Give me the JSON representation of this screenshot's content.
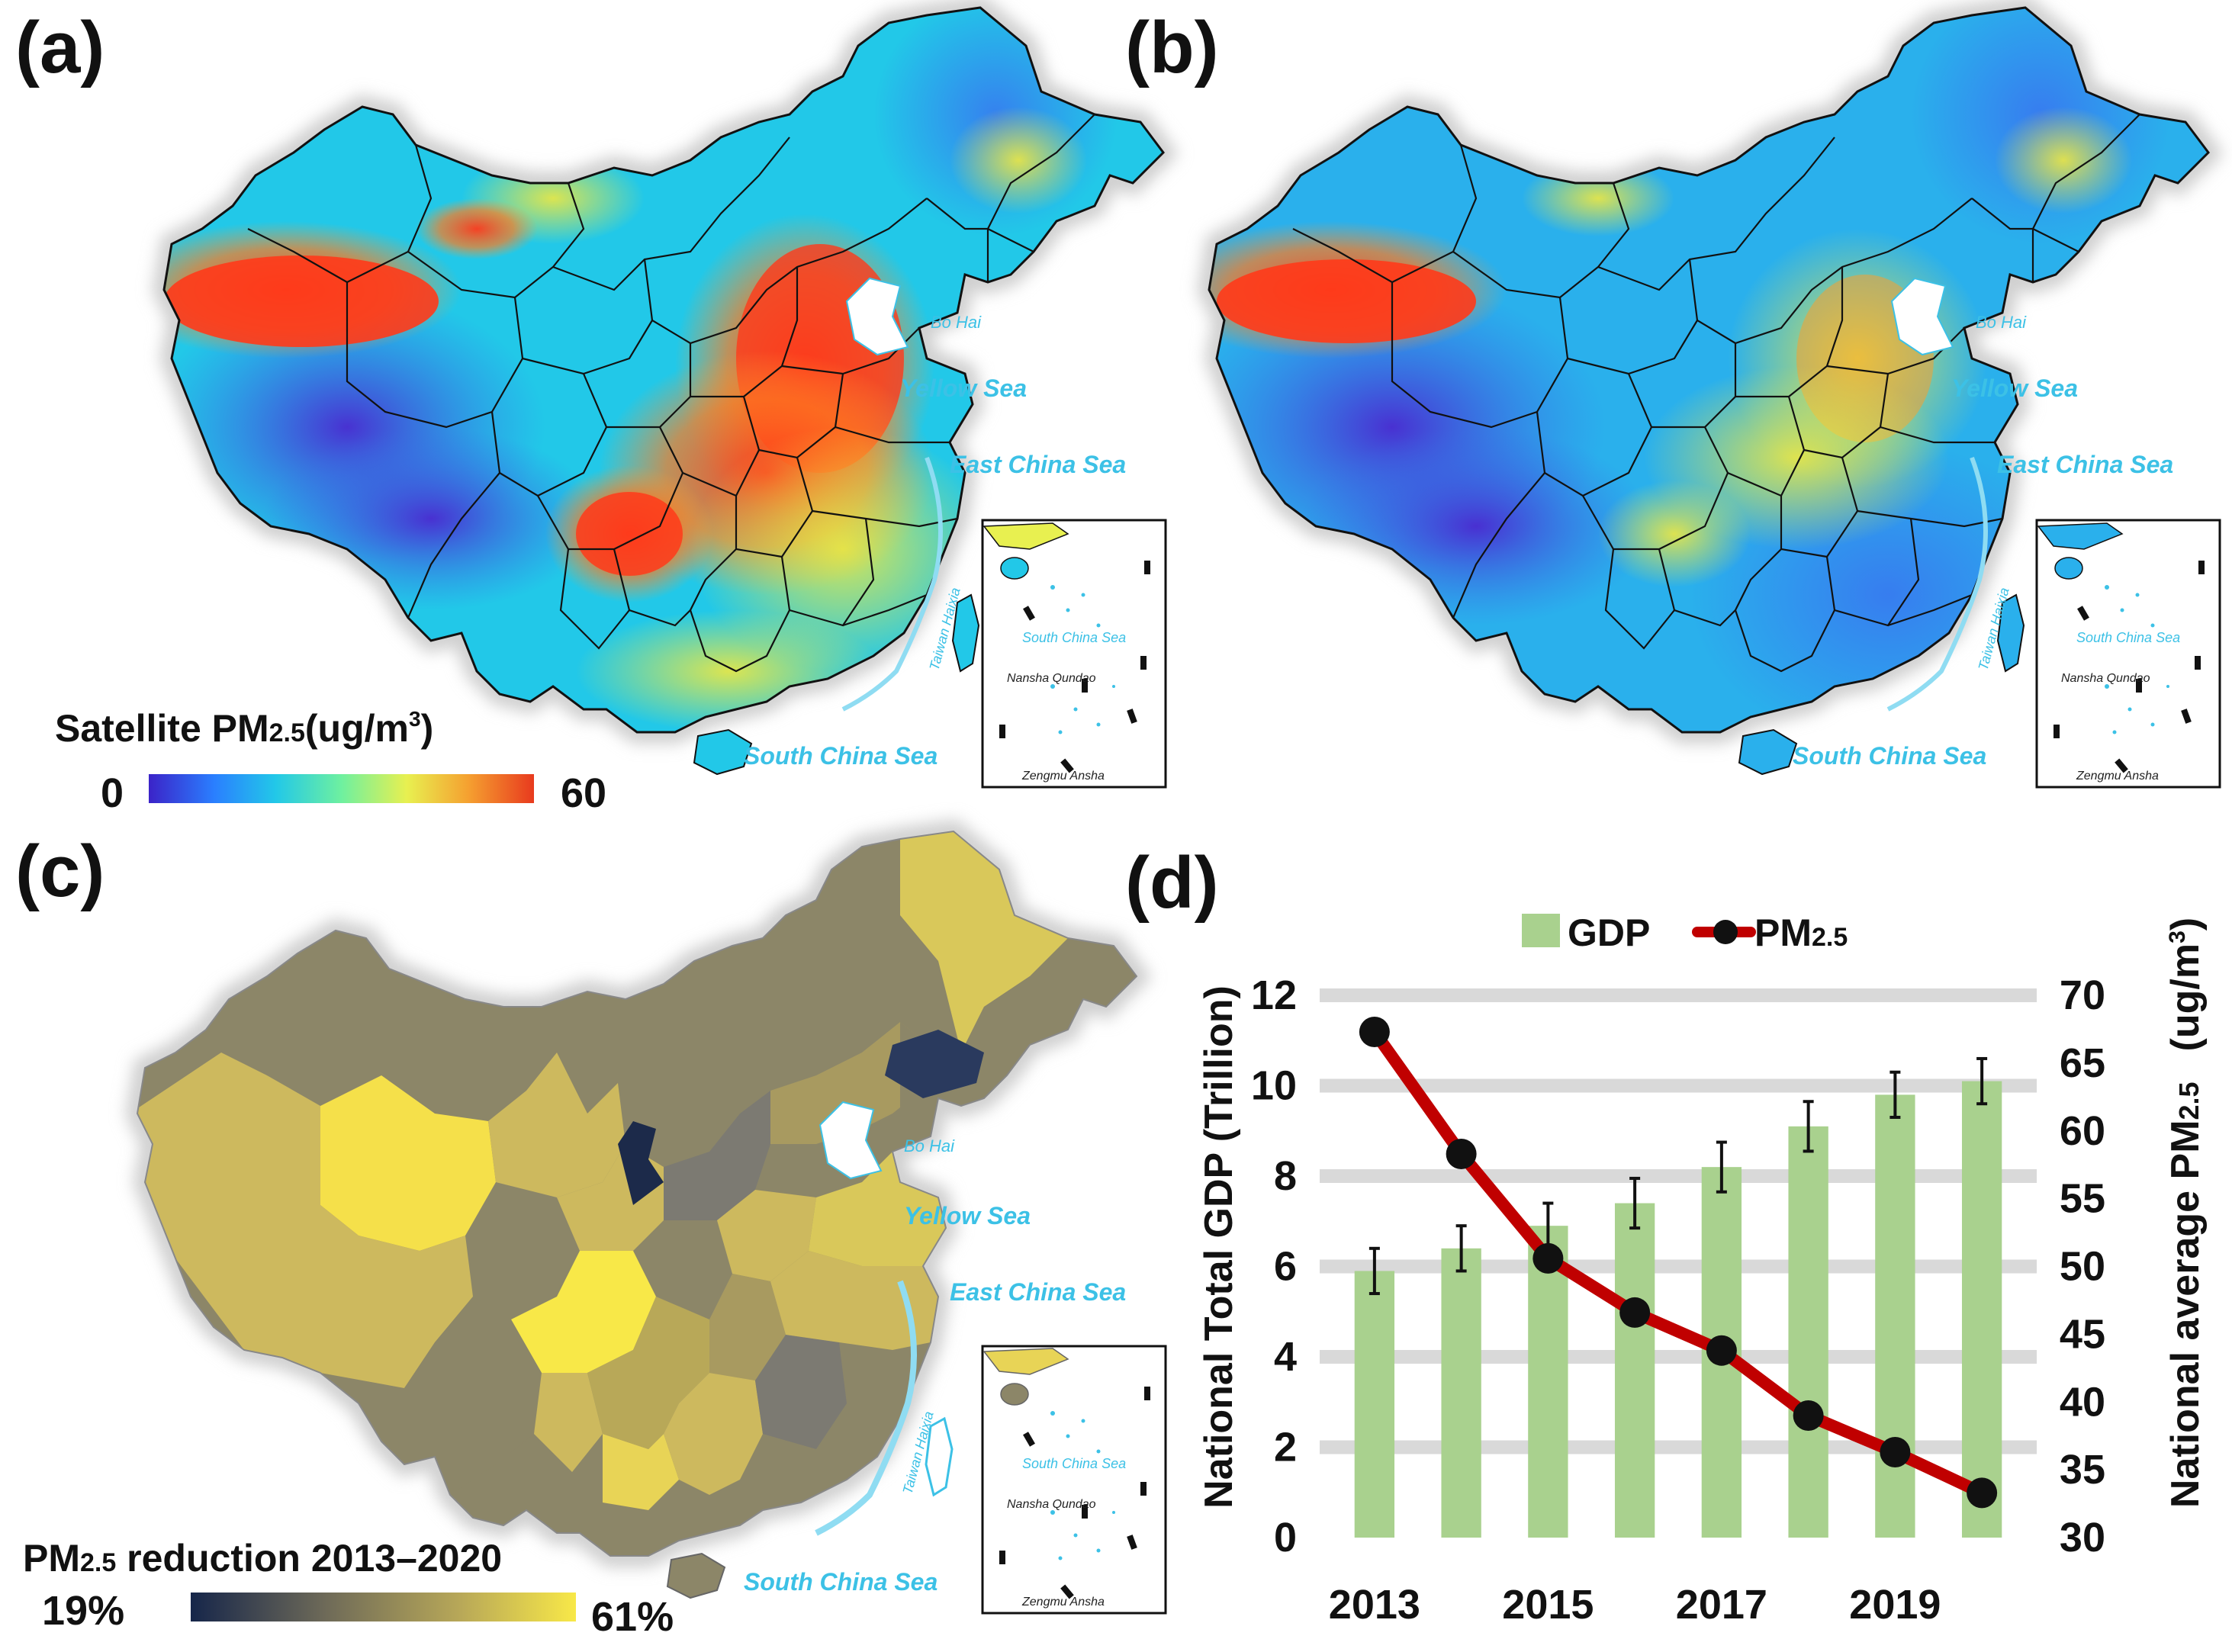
{
  "panels": {
    "a": {
      "letter": "(a)"
    },
    "b": {
      "letter": "(b)"
    },
    "c": {
      "letter": "(c)"
    },
    "d": {
      "letter": "(d)"
    }
  },
  "seas": {
    "bohai": "Bo Hai",
    "yellow": "Yellow Sea",
    "east": "East China Sea",
    "south": "South China Sea",
    "taiwan_strait": "Taiwan Haixia"
  },
  "inset": {
    "south_china_sea": "South China Sea",
    "nansha": "Nansha Qundao",
    "zengmu": "Zengmu Ansha"
  },
  "legend_a": {
    "title_prefix": "Satellite PM",
    "title_sub": "2.5",
    "title_suffix": "(ug/m",
    "title_sup": "3",
    "title_close": ")",
    "min": "0",
    "max": "60",
    "gradient": [
      "#3b23c8",
      "#2a7fff",
      "#22c8e8",
      "#6ef0a0",
      "#e8f050",
      "#f5a030",
      "#e83a1e"
    ]
  },
  "legend_c": {
    "title_prefix": "PM",
    "title_sub": "2.5",
    "title_suffix": " reduction 2013–2020",
    "min": "19%",
    "max": "61%",
    "gradient": [
      "#16264a",
      "#6e6a58",
      "#b8a858",
      "#f8e848"
    ]
  },
  "chart_data": {
    "type": "bar+line",
    "legend": {
      "gdp": "GDP",
      "pm_prefix": "PM",
      "pm_sub": "2.5"
    },
    "x_tick_labels": [
      "2013",
      "2015",
      "2017",
      "2019"
    ],
    "years": [
      2013,
      2014,
      2015,
      2016,
      2017,
      2018,
      2019,
      2020
    ],
    "gdp": [
      5.9,
      6.4,
      6.9,
      7.4,
      8.2,
      9.1,
      9.8,
      10.1
    ],
    "gdp_error": [
      0.5,
      0.5,
      0.5,
      0.55,
      0.55,
      0.55,
      0.5,
      0.5
    ],
    "pm25": [
      67.3,
      58.3,
      50.6,
      46.6,
      43.8,
      39.0,
      36.3,
      33.3
    ],
    "ylabel_left": "National Total GDP (Trillion)",
    "ylabel_right_prefix": "National average PM",
    "ylabel_right_sub": "2.5",
    "ylabel_right_unit": "(ug/m",
    "ylabel_right_sup": "3",
    "ylabel_right_close": ")",
    "ylim_left": [
      0,
      12
    ],
    "yticks_left": [
      "0",
      "2",
      "4",
      "6",
      "8",
      "10",
      "12"
    ],
    "ylim_right": [
      30,
      70
    ],
    "yticks_right": [
      "30",
      "35",
      "40",
      "45",
      "50",
      "55",
      "60",
      "65",
      "70"
    ],
    "grid": true,
    "legend_position": "top",
    "colors": {
      "bar": "#a9d18e",
      "line": "#c00000",
      "marker": "#111111"
    }
  }
}
